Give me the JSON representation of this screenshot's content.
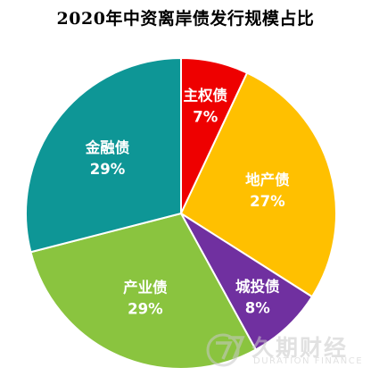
{
  "chart_data": {
    "type": "pie",
    "title": "2020年中资离岸债发行规模占比",
    "slices": [
      {
        "label": "主权债",
        "value": 7,
        "display": "7%",
        "color": "#ee0000"
      },
      {
        "label": "地产债",
        "value": 27,
        "display": "27%",
        "color": "#ffc000"
      },
      {
        "label": "城投债",
        "value": 8,
        "display": "8%",
        "color": "#7030a0"
      },
      {
        "label": "产业债",
        "value": 29,
        "display": "29%",
        "color": "#8ac43f"
      },
      {
        "label": "金融债",
        "value": 29,
        "display": "29%",
        "color": "#0e9696"
      }
    ]
  },
  "watermark": {
    "logo_icon": "duration-finance-logo-icon",
    "text_cn": "久期财经",
    "text_en": "DURATION FINANCE"
  }
}
